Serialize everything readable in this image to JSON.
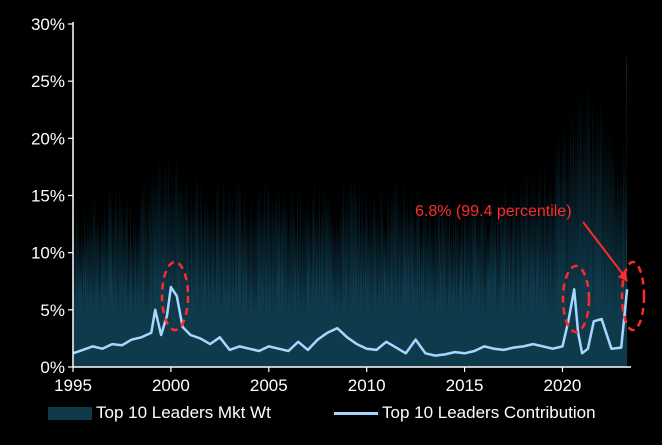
{
  "chart_data": {
    "type": "area",
    "x_range": [
      1995,
      2023.5
    ],
    "ylim": [
      0,
      30
    ],
    "y_ticks": [
      0,
      5,
      10,
      15,
      20,
      25,
      30
    ],
    "y_tick_labels": [
      "0%",
      "5%",
      "10%",
      "15%",
      "20%",
      "25%",
      "30%"
    ],
    "x_ticks": [
      1995,
      2000,
      2005,
      2010,
      2015,
      2020
    ],
    "x_tick_labels": [
      "1995",
      "2000",
      "2005",
      "2010",
      "2015",
      "2020"
    ],
    "grid": false,
    "legend_position": "bottom",
    "series": [
      {
        "name": "Top 10 Leaders Mkt Wt",
        "kind": "area",
        "color": "#0f3a4c",
        "x": [
          1995,
          1995.5,
          1996,
          1996.5,
          1997,
          1997.5,
          1998,
          1998.5,
          1999,
          1999.5,
          2000,
          2000.5,
          2001,
          2001.5,
          2002,
          2002.5,
          2003,
          2003.5,
          2004,
          2004.5,
          2005,
          2005.5,
          2006,
          2006.5,
          2007,
          2007.5,
          2008,
          2008.5,
          2009,
          2009.5,
          2010,
          2010.5,
          2011,
          2011.5,
          2012,
          2012.5,
          2013,
          2013.5,
          2014,
          2014.5,
          2015,
          2015.5,
          2016,
          2016.5,
          2017,
          2017.5,
          2018,
          2018.5,
          2019,
          2019.5,
          2020,
          2020.5,
          2021,
          2021.5,
          2022,
          2022.5,
          2023,
          2023.3
        ],
        "values": [
          15,
          14.5,
          16,
          15,
          17,
          16,
          15.5,
          17,
          18,
          19,
          20,
          19.5,
          18,
          17,
          16,
          17,
          18,
          17,
          16,
          17,
          18,
          17,
          16,
          17,
          16,
          17,
          16.5,
          16,
          18,
          17,
          16,
          17,
          16,
          17,
          17.5,
          16,
          16,
          15.5,
          16,
          15,
          15,
          16,
          16,
          16,
          17,
          17,
          18,
          18.5,
          19,
          20,
          23,
          25,
          26.5,
          26,
          24,
          22,
          20,
          27.5
        ]
      },
      {
        "name": "Top 10 Leaders Contribution",
        "kind": "line",
        "color": "#a6d8ff",
        "x": [
          1995,
          1995.5,
          1996,
          1996.5,
          1997,
          1997.5,
          1998,
          1998.5,
          1999,
          1999.2,
          1999.5,
          1999.8,
          2000,
          2000.3,
          2000.6,
          2001,
          2001.5,
          2002,
          2002.5,
          2003,
          2003.5,
          2004,
          2004.5,
          2005,
          2005.5,
          2006,
          2006.5,
          2007,
          2007.5,
          2008,
          2008.5,
          2009,
          2009.5,
          2010,
          2010.5,
          2011,
          2011.5,
          2012,
          2012.5,
          2013,
          2013.5,
          2014,
          2014.5,
          2015,
          2015.5,
          2016,
          2016.5,
          2017,
          2017.5,
          2018,
          2018.5,
          2019,
          2019.5,
          2020,
          2020.3,
          2020.6,
          2020.8,
          2021,
          2021.3,
          2021.6,
          2022,
          2022.5,
          2023,
          2023.3
        ],
        "values": [
          1.2,
          1.5,
          1.8,
          1.6,
          2.0,
          1.9,
          2.4,
          2.6,
          3.0,
          5.0,
          2.8,
          4.5,
          7.0,
          6.2,
          3.5,
          2.8,
          2.5,
          2.0,
          2.6,
          1.5,
          1.8,
          1.6,
          1.4,
          1.8,
          1.6,
          1.4,
          2.2,
          1.5,
          2.4,
          3.0,
          3.4,
          2.6,
          2.0,
          1.6,
          1.5,
          2.2,
          1.7,
          1.2,
          2.4,
          1.2,
          1.0,
          1.1,
          1.3,
          1.2,
          1.4,
          1.8,
          1.6,
          1.5,
          1.7,
          1.8,
          2.0,
          1.8,
          1.6,
          1.8,
          4.0,
          6.8,
          3.0,
          1.2,
          1.6,
          4.0,
          4.2,
          1.6,
          1.7,
          6.8
        ]
      }
    ],
    "annotations": [
      {
        "text": "6.8% (99.4 percentile)",
        "x": 2023.2,
        "y": 6.8,
        "color": "#ff2a2a"
      }
    ]
  }
}
